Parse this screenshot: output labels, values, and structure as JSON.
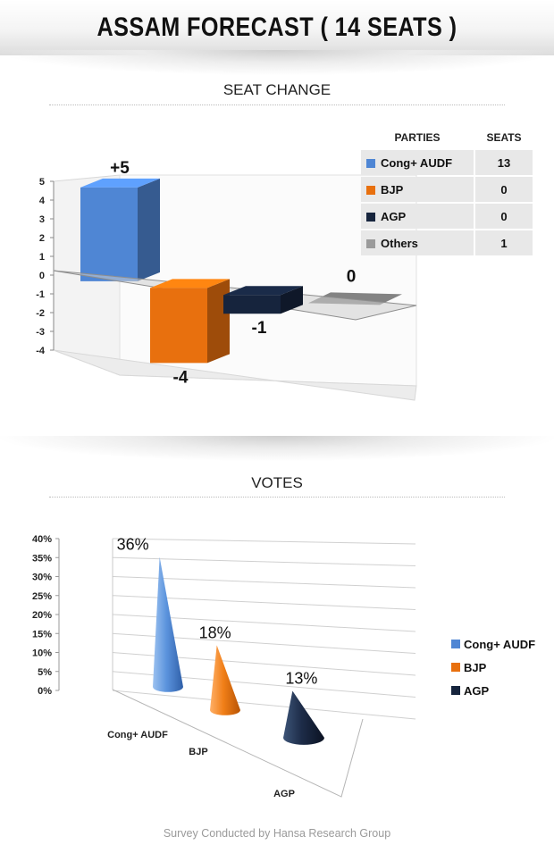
{
  "header": {
    "title": "ASSAM FORECAST ( 14 SEATS )"
  },
  "seat_section": {
    "title": "SEAT CHANGE"
  },
  "votes_section": {
    "title": "VOTES"
  },
  "legend_table": {
    "col_party": "PARTIES",
    "col_seats": "SEATS",
    "rows": [
      {
        "party": "Cong+ AUDF",
        "seats": "13",
        "color": "#4f86d4"
      },
      {
        "party": "BJP",
        "seats": "0",
        "color": "#e8700e"
      },
      {
        "party": "AGP",
        "seats": "0",
        "color": "#16243d"
      },
      {
        "party": "Others",
        "seats": "1",
        "color": "#9a9a9a"
      }
    ]
  },
  "chart_data": [
    {
      "type": "bar",
      "title": "SEAT CHANGE",
      "categories": [
        "Cong+ AUDF",
        "BJP",
        "AGP",
        "Others"
      ],
      "values": [
        5,
        -4,
        -1,
        0
      ],
      "data_labels": [
        "+5",
        "-4",
        "-1",
        "0"
      ],
      "colors": [
        "#4f86d4",
        "#e8700e",
        "#16243d",
        "#9a9a9a"
      ],
      "ylim": [
        -4,
        5
      ],
      "yticks": [
        "5",
        "4",
        "3",
        "2",
        "1",
        "0",
        "-1",
        "-2",
        "-3",
        "-4"
      ],
      "grid": false
    },
    {
      "type": "bar",
      "title": "VOTES",
      "categories": [
        "Cong+ AUDF",
        "BJP",
        "AGP"
      ],
      "values": [
        36,
        18,
        13
      ],
      "data_labels": [
        "36%",
        "18%",
        "13%"
      ],
      "colors": [
        "#4f86d4",
        "#e8700e",
        "#16243d"
      ],
      "ylim": [
        0,
        40
      ],
      "yticks": [
        "40%",
        "35%",
        "30%",
        "25%",
        "20%",
        "15%",
        "10%",
        "5%",
        "0%"
      ],
      "legend": [
        "Cong+ AUDF",
        "BJP",
        "AGP"
      ],
      "grid": true
    }
  ],
  "footer": {
    "text": "Survey Conducted by Hansa Research Group"
  }
}
